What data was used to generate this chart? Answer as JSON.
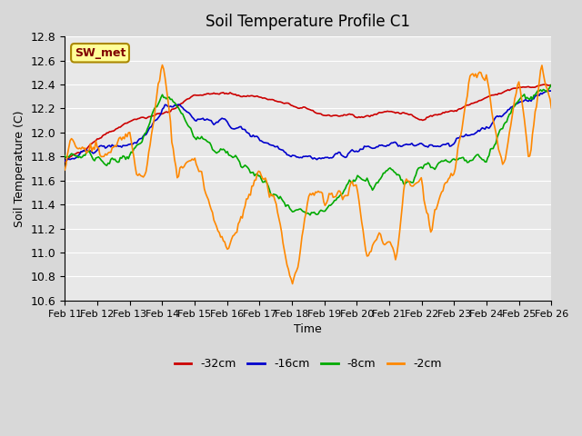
{
  "title": "Soil Temperature Profile C1",
  "xlabel": "Time",
  "ylabel": "Soil Temperature (C)",
  "ylim": [
    10.6,
    12.8
  ],
  "yticks": [
    10.6,
    10.8,
    11.0,
    11.2,
    11.4,
    11.6,
    11.8,
    12.0,
    12.2,
    12.4,
    12.6,
    12.8
  ],
  "x_tick_labels": [
    "Feb 11",
    "Feb 12",
    "Feb 13",
    "Feb 14",
    "Feb 15",
    "Feb 16",
    "Feb 17",
    "Feb 18",
    "Feb 19",
    "Feb 20",
    "Feb 21",
    "Feb 22",
    "Feb 23",
    "Feb 24",
    "Feb 25",
    "Feb 26"
  ],
  "colors": {
    "red": "#cc0000",
    "blue": "#0000cc",
    "green": "#00aa00",
    "orange": "#ff8800"
  },
  "legend_label": "SW_met",
  "background_color": "#e8e8e8",
  "plot_background": "#e8e8e8",
  "series_labels": [
    "-32cm",
    "-16cm",
    "-8cm",
    "-2cm"
  ]
}
